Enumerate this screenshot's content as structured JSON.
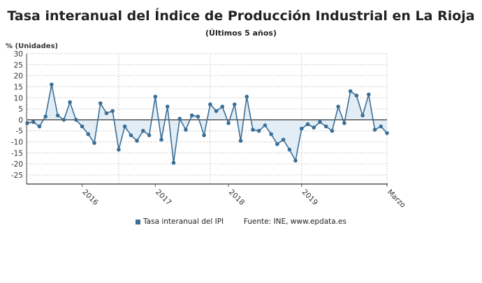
{
  "chart_data": {
    "type": "line",
    "title": "Tasa interanual del Índice de Producción Industrial en La Rioja",
    "subtitle": "(Últimos 5 años)",
    "ylabel": "% (Unidades)",
    "ylim": [
      -30,
      30
    ],
    "yticks": [
      30,
      25,
      20,
      15,
      10,
      5,
      0,
      -5,
      -10,
      -15,
      -20,
      -25
    ],
    "xtick_labels": [
      {
        "label": "2016",
        "index": 9
      },
      {
        "label": "2017",
        "index": 21
      },
      {
        "label": "2018",
        "index": 33
      },
      {
        "label": "2019",
        "index": 45
      },
      {
        "label": "Marzo",
        "index": 59
      }
    ],
    "grid": true,
    "series": [
      {
        "name": "Tasa interanual del IPI",
        "color": "#3a6f98",
        "fill": "#dce8f2",
        "values": [
          -1.5,
          -1,
          -3,
          1.5,
          16,
          2,
          0,
          8,
          0,
          -3,
          -6.5,
          -10.5,
          7.5,
          3,
          4,
          -13.5,
          -3,
          -7,
          -9.5,
          -5,
          -7,
          10.5,
          -9,
          6,
          -19.5,
          0.5,
          -4.5,
          2,
          1.5,
          -7,
          7,
          4,
          6,
          -1.5,
          7,
          -9.5,
          10.5,
          -4.5,
          -5,
          -2.5,
          -6.5,
          -11,
          -9,
          -13.5,
          -18.5,
          -4,
          -2,
          -3.5,
          -1,
          -3,
          -5,
          6,
          -1.5,
          13,
          11,
          2,
          11.5,
          -4.5,
          -3,
          -6
        ]
      }
    ],
    "source": "Fuente: INE, www.epdata.es",
    "legend_position": "bottom"
  }
}
